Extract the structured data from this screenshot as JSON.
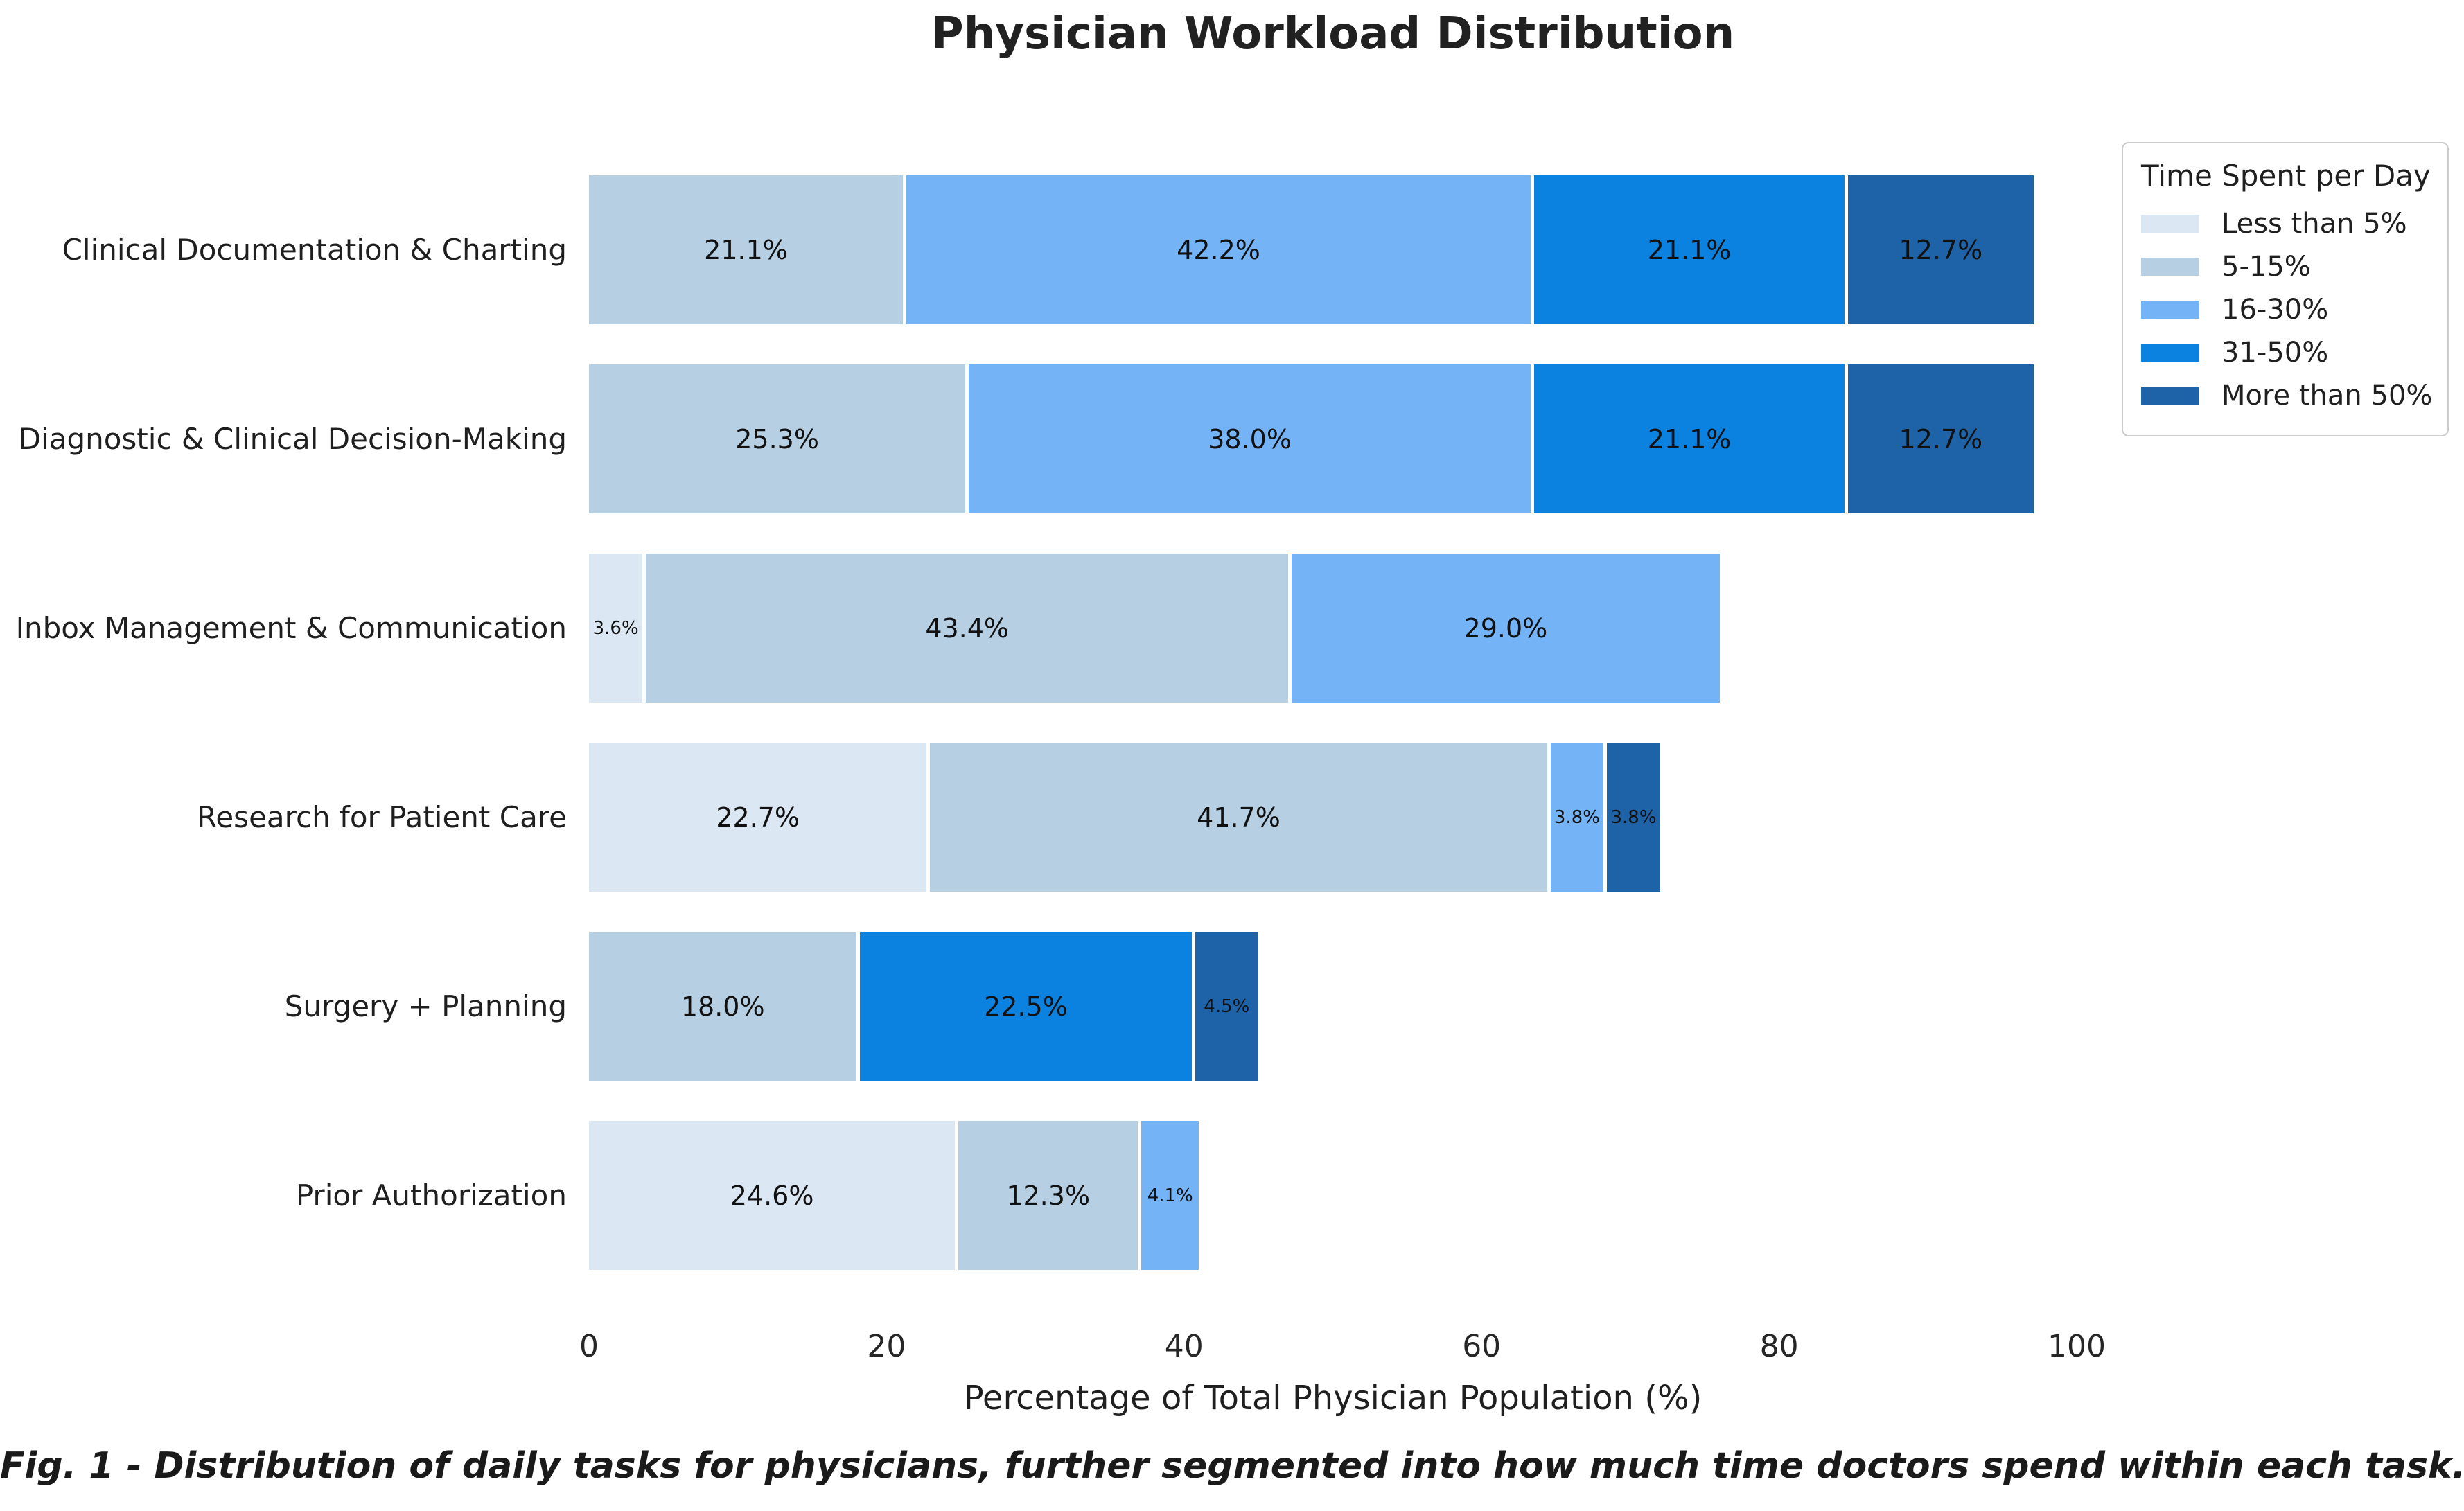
{
  "chart_data": {
    "type": "bar",
    "stacked": true,
    "orientation": "horizontal",
    "title": "Physician Workload Distribution",
    "xlabel": "Percentage of Total Physician Population (%)",
    "xlim": [
      0,
      100
    ],
    "xticks": [
      0,
      20,
      40,
      60,
      80,
      100
    ],
    "grid": false,
    "legend_title": "Time Spent per Day",
    "legend_position": "upper right",
    "categories": [
      "Clinical Documentation & Charting",
      "Diagnostic & Clinical Decision-Making",
      "Inbox Management & Communication",
      "Research for Patient Care",
      "Surgery + Planning",
      "Prior Authorization"
    ],
    "series": [
      {
        "name": "Less than 5%",
        "color": "#dbe7f3",
        "values": [
          0,
          0,
          3.6,
          22.7,
          0,
          24.6
        ]
      },
      {
        "name": "5-15%",
        "color": "#b6cfe2",
        "values": [
          21.1,
          25.3,
          43.4,
          41.7,
          18.0,
          12.3
        ]
      },
      {
        "name": "16-30%",
        "color": "#74b4f6",
        "values": [
          42.2,
          38.0,
          29.0,
          3.8,
          0,
          4.1
        ]
      },
      {
        "name": "31-50%",
        "color": "#0b81e0",
        "values": [
          21.1,
          21.1,
          0,
          0,
          22.5,
          0
        ]
      },
      {
        "name": "More than 50%",
        "color": "#1e63a8",
        "values": [
          12.7,
          12.7,
          0,
          3.8,
          4.5,
          0
        ]
      }
    ],
    "caption": "Fig. 1 - Distribution of daily tasks for physicians, further segmented into how much time doctors spend within each task."
  }
}
